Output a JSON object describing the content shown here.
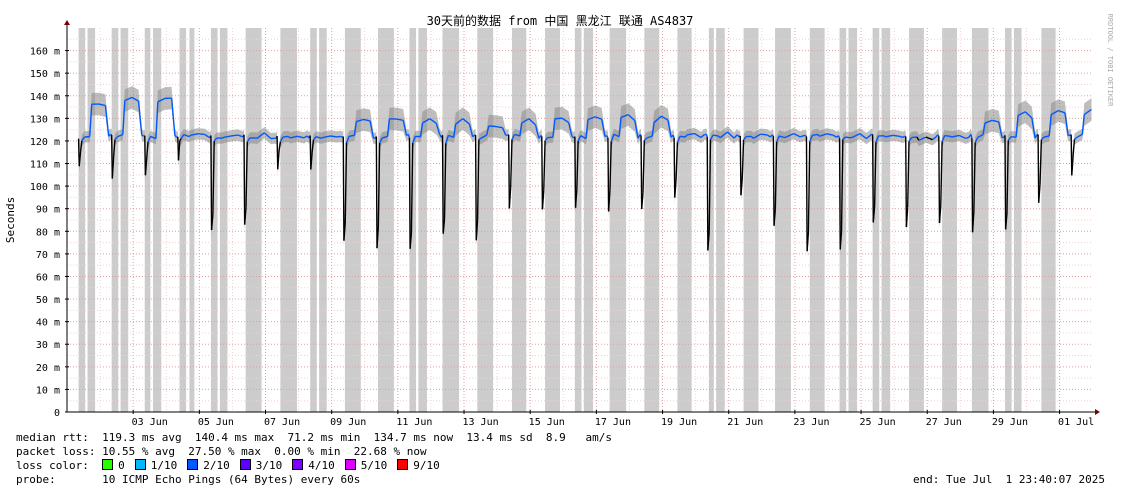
{
  "chart_data": {
    "type": "line",
    "title": "30天前的数据 from 中国 黑龙江 联通 AS4837",
    "ylabel": "Seconds",
    "watermark": "RRDTOOL / TOBI OETIKER",
    "ylim": [
      0,
      170
    ],
    "y_unit": "ms",
    "y_ticks": [
      0,
      10,
      20,
      30,
      40,
      50,
      60,
      70,
      80,
      90,
      100,
      110,
      120,
      130,
      140,
      150,
      160
    ],
    "y_tick_labels": [
      "0",
      "10 m",
      "20 m",
      "30 m",
      "40 m",
      "50 m",
      "60 m",
      "70 m",
      "80 m",
      "90 m",
      "100 m",
      "110 m",
      "120 m",
      "130 m",
      "140 m",
      "150 m",
      "160 m"
    ],
    "x_range_days": [
      1.0,
      31.98
    ],
    "x_ticks": [
      {
        "day": 3,
        "label": "03 Jun"
      },
      {
        "day": 5,
        "label": "05 Jun"
      },
      {
        "day": 7,
        "label": "07 Jun"
      },
      {
        "day": 9,
        "label": "09 Jun"
      },
      {
        "day": 11,
        "label": "11 Jun"
      },
      {
        "day": 13,
        "label": "13 Jun"
      },
      {
        "day": 15,
        "label": "15 Jun"
      },
      {
        "day": 17,
        "label": "17 Jun"
      },
      {
        "day": 19,
        "label": "19 Jun"
      },
      {
        "day": 21,
        "label": "21 Jun"
      },
      {
        "day": 23,
        "label": "23 Jun"
      },
      {
        "day": 25,
        "label": "25 Jun"
      },
      {
        "day": 27,
        "label": "27 Jun"
      },
      {
        "day": 29,
        "label": "29 Jun"
      },
      {
        "day": 31,
        "label": "01 Jul"
      }
    ],
    "daily_profile": [
      {
        "day": 1,
        "base": 122,
        "high": 136,
        "dip": 108
      },
      {
        "day": 2,
        "base": 122,
        "high": 138,
        "dip": 104
      },
      {
        "day": 3,
        "base": 122,
        "high": 138,
        "dip": 105
      },
      {
        "day": 4,
        "base": 122,
        "high": 122,
        "dip": 112
      },
      {
        "day": 5,
        "base": 122,
        "high": 122,
        "dip": 80
      },
      {
        "day": 6,
        "base": 122,
        "high": 122,
        "dip": 83
      },
      {
        "day": 7,
        "base": 122,
        "high": 122,
        "dip": 108
      },
      {
        "day": 8,
        "base": 122,
        "high": 122,
        "dip": 108
      },
      {
        "day": 9,
        "base": 122,
        "high": 128,
        "dip": 75
      },
      {
        "day": 10,
        "base": 122,
        "high": 129,
        "dip": 73
      },
      {
        "day": 11,
        "base": 122,
        "high": 128,
        "dip": 72
      },
      {
        "day": 12,
        "base": 122,
        "high": 128,
        "dip": 78
      },
      {
        "day": 13,
        "base": 122,
        "high": 126,
        "dip": 77
      },
      {
        "day": 14,
        "base": 122,
        "high": 128,
        "dip": 91
      },
      {
        "day": 15,
        "base": 122,
        "high": 129,
        "dip": 89
      },
      {
        "day": 16,
        "base": 122,
        "high": 129,
        "dip": 90
      },
      {
        "day": 17,
        "base": 122,
        "high": 130,
        "dip": 89
      },
      {
        "day": 18,
        "base": 122,
        "high": 129,
        "dip": 90
      },
      {
        "day": 19,
        "base": 122,
        "high": 122,
        "dip": 95
      },
      {
        "day": 20,
        "base": 122,
        "high": 122,
        "dip": 72
      },
      {
        "day": 21,
        "base": 122,
        "high": 122,
        "dip": 96
      },
      {
        "day": 22,
        "base": 122,
        "high": 122,
        "dip": 82
      },
      {
        "day": 23,
        "base": 122,
        "high": 122,
        "dip": 72
      },
      {
        "day": 24,
        "base": 122,
        "high": 122,
        "dip": 71
      },
      {
        "day": 25,
        "base": 122,
        "high": 122,
        "dip": 84
      },
      {
        "day": 26,
        "base": 122,
        "high": 121,
        "dip": 82
      },
      {
        "day": 27,
        "base": 122,
        "high": 121,
        "dip": 84
      },
      {
        "day": 28,
        "base": 122,
        "high": 128,
        "dip": 80
      },
      {
        "day": 29,
        "base": 122,
        "high": 131,
        "dip": 80
      },
      {
        "day": 30,
        "base": 122,
        "high": 132,
        "dip": 92
      },
      {
        "day": 31,
        "base": 122,
        "high": 132,
        "dip": 105
      }
    ],
    "loss_shading_days": [
      [
        1.35,
        1.55
      ],
      [
        1.62,
        1.85
      ],
      [
        2.35,
        2.55
      ],
      [
        2.62,
        2.85
      ],
      [
        3.35,
        3.52
      ],
      [
        3.6,
        3.85
      ],
      [
        4.4,
        4.6
      ],
      [
        4.7,
        4.85
      ],
      [
        5.35,
        5.55
      ],
      [
        5.62,
        5.85
      ],
      [
        6.4,
        6.88
      ],
      [
        7.45,
        7.95
      ],
      [
        8.35,
        8.55
      ],
      [
        8.62,
        8.85
      ],
      [
        9.4,
        9.88
      ],
      [
        10.4,
        10.88
      ],
      [
        11.35,
        11.55
      ],
      [
        11.62,
        11.88
      ],
      [
        12.35,
        12.85
      ],
      [
        13.4,
        13.88
      ],
      [
        14.45,
        14.88
      ],
      [
        15.45,
        15.9
      ],
      [
        16.35,
        16.55
      ],
      [
        16.62,
        16.9
      ],
      [
        17.4,
        17.9
      ],
      [
        18.45,
        18.9
      ],
      [
        19.45,
        19.88
      ],
      [
        20.4,
        20.55
      ],
      [
        20.62,
        20.88
      ],
      [
        21.45,
        21.9
      ],
      [
        22.4,
        22.88
      ],
      [
        23.45,
        23.9
      ],
      [
        24.35,
        24.55
      ],
      [
        24.62,
        24.88
      ],
      [
        25.35,
        25.55
      ],
      [
        25.62,
        25.88
      ],
      [
        26.45,
        26.9
      ],
      [
        27.45,
        27.9
      ],
      [
        28.35,
        28.85
      ],
      [
        29.35,
        29.55
      ],
      [
        29.62,
        29.85
      ],
      [
        30.45,
        30.88
      ]
    ],
    "loss_colors": [
      {
        "label": "0",
        "color": "#26ff00"
      },
      {
        "label": "1/10",
        "color": "#00b8ff"
      },
      {
        "label": "2/10",
        "color": "#0059ff"
      },
      {
        "label": "3/10",
        "color": "#5e00ff"
      },
      {
        "label": "4/10",
        "color": "#7e00ff"
      },
      {
        "label": "5/10",
        "color": "#dd00ff"
      },
      {
        "label": "9/10",
        "color": "#ff0000"
      }
    ]
  },
  "stats": {
    "median_rtt_label": "median rtt:",
    "median_rtt_value": "119.3 ms avg  140.4 ms max  71.2 ms min  134.7 ms now  13.4 ms sd  8.9   am/s",
    "packet_loss_label": "packet loss:",
    "packet_loss_value": "10.55 % avg  27.50 % max  0.00 % min  22.68 % now",
    "loss_color_label": "loss color:",
    "probe_label": "probe:",
    "probe_value": "10 ICMP Echo Pings (64 Bytes) every 60s",
    "end_text": "end: Tue Jul  1 23:40:07 2025"
  }
}
